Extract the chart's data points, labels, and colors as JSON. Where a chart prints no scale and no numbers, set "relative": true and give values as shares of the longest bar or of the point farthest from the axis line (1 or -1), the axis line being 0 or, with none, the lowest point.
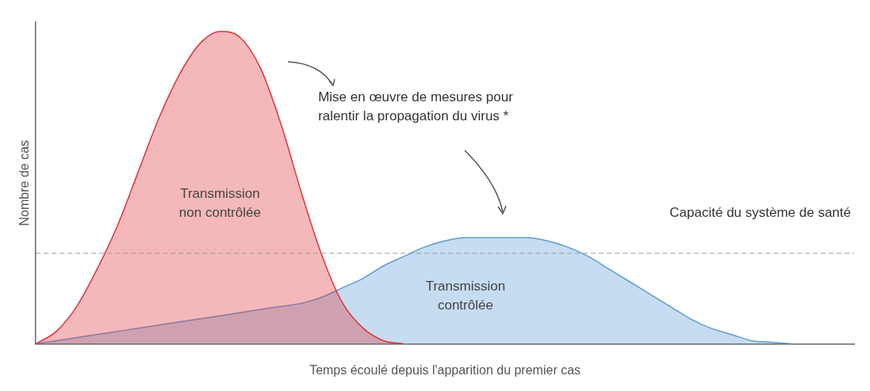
{
  "chart_data": {
    "type": "area",
    "relative": true,
    "xlabel": "Temps écoulé depuis l'apparition du premier cas",
    "ylabel": "Nombre de cas",
    "categories": [
      null,
      null,
      null,
      null,
      null,
      null,
      null,
      null,
      null,
      null,
      null,
      null,
      null,
      null,
      null,
      null,
      null,
      null,
      null,
      null,
      null,
      null,
      null,
      null,
      null,
      null,
      null,
      null,
      null,
      null,
      null,
      null,
      null,
      null,
      null,
      null,
      null,
      null,
      null,
      null,
      null
    ],
    "series": [
      {
        "name": "Transmission non contrôlée",
        "color": "#e0343a",
        "values": [
          0,
          0.04,
          0.12,
          0.24,
          0.38,
          0.55,
          0.72,
          0.86,
          0.96,
          1,
          0.98,
          0.88,
          0.7,
          0.48,
          0.28,
          0.13,
          0.05,
          0.01,
          0,
          null,
          null,
          null,
          null,
          null,
          null,
          null,
          null,
          null,
          null,
          null,
          null,
          null,
          null,
          null,
          null,
          null,
          null,
          null,
          null,
          null,
          null
        ]
      },
      {
        "name": "Transmission contrôlée",
        "color": "#5b9bd5",
        "values": [
          0,
          0.01,
          0.02,
          0.03,
          0.04,
          0.05,
          0.06,
          0.07,
          0.08,
          0.09,
          0.1,
          0.11,
          0.12,
          0.13,
          0.15,
          0.18,
          0.21,
          0.25,
          0.28,
          0.31,
          0.33,
          0.34,
          0.34,
          0.34,
          0.34,
          0.33,
          0.31,
          0.28,
          0.24,
          0.2,
          0.16,
          0.12,
          0.08,
          0.05,
          0.03,
          0.01,
          0.005,
          0,
          null,
          null,
          null
        ]
      }
    ],
    "ref_lines": [
      {
        "axis": "y",
        "value": 0.29,
        "label": "Capacité du système de santé",
        "color": "#999999",
        "line_style": "dashed"
      }
    ],
    "annotations": [
      "Mise en œuvre de mesures pour ralentir la propagation du virus *"
    ],
    "grid": false,
    "legend": false
  }
}
